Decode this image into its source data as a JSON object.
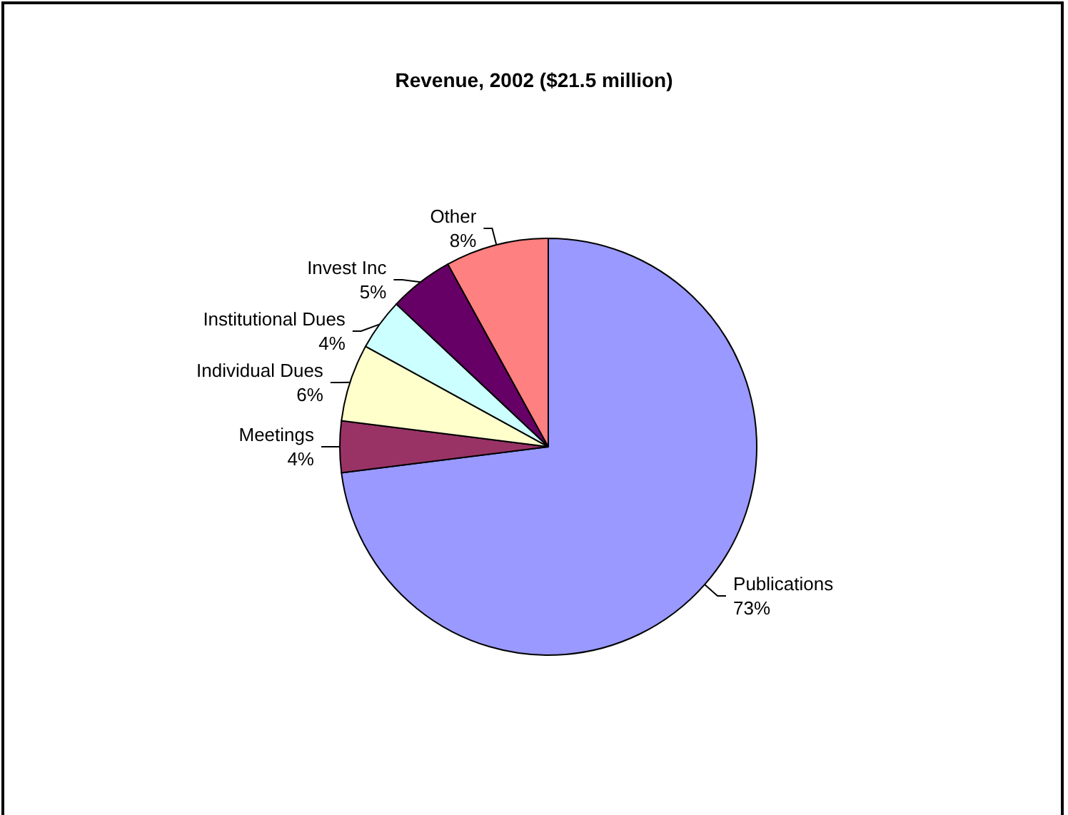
{
  "chart_data": {
    "type": "pie",
    "title": "Revenue, 2002 ($21.5 million)",
    "categories": [
      "Publications",
      "Meetings",
      "Individual Dues",
      "Institutional Dues",
      "Invest Inc",
      "Other"
    ],
    "values": [
      73,
      4,
      6,
      4,
      5,
      8
    ],
    "value_labels": [
      "73%",
      "4%",
      "6%",
      "4%",
      "5%",
      "8%"
    ],
    "colors": [
      "#9999ff",
      "#993366",
      "#ffffcc",
      "#ccffff",
      "#660066",
      "#ff8080"
    ],
    "legend": false
  }
}
